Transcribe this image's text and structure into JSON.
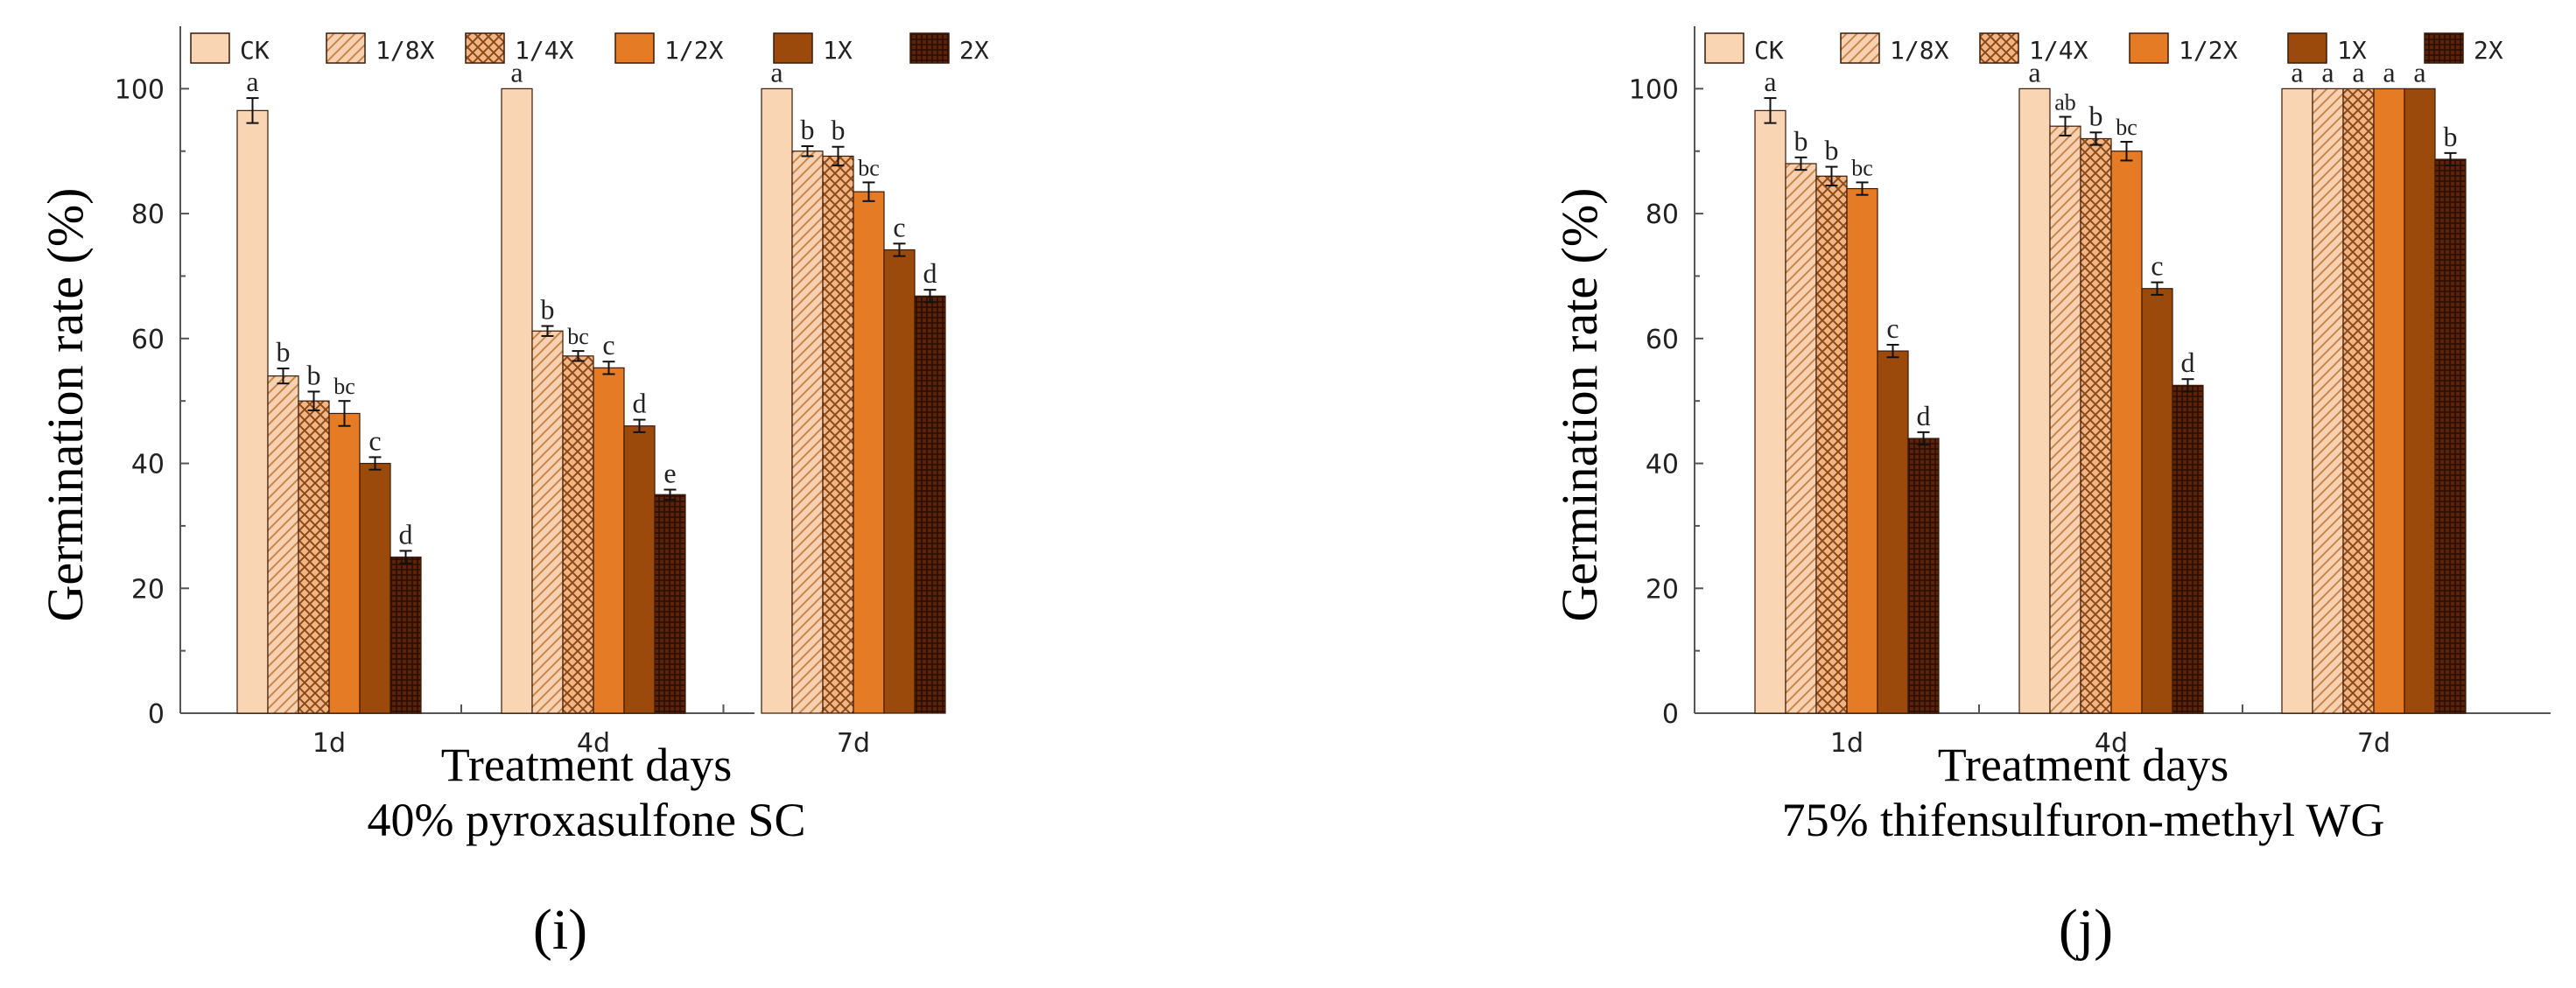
{
  "chart_data": [
    {
      "type": "bar",
      "panel_label": "(i)",
      "subtitle": "40% pyroxasulfone SC",
      "xlabel": "Treatment days",
      "ylabel": "Germination rate (%)",
      "ylim": [
        0,
        110
      ],
      "yticks": [
        0,
        20,
        40,
        60,
        80,
        100
      ],
      "categories": [
        "1d",
        "4d",
        "7d"
      ],
      "legend_position": "top",
      "series": [
        {
          "name": "CK",
          "values": [
            96.5,
            100,
            100
          ],
          "errors": [
            2.0,
            0.0,
            0.0
          ],
          "letters": [
            "a",
            "a",
            "a"
          ]
        },
        {
          "name": "1/8X",
          "values": [
            54,
            61.2,
            90
          ],
          "errors": [
            1.2,
            0.8,
            0.8
          ],
          "letters": [
            "b",
            "b",
            "b"
          ]
        },
        {
          "name": "1/4X",
          "values": [
            50,
            57.2,
            89.2
          ],
          "errors": [
            1.5,
            0.8,
            1.5
          ],
          "letters": [
            "b",
            "bc",
            "b"
          ]
        },
        {
          "name": "1/2X",
          "values": [
            48,
            55.3,
            83.5
          ],
          "errors": [
            2.0,
            1.0,
            1.5
          ],
          "letters": [
            "bc",
            "c",
            "bc"
          ]
        },
        {
          "name": "1X",
          "values": [
            40,
            46,
            74.2
          ],
          "errors": [
            1.0,
            1.0,
            1.0
          ],
          "letters": [
            "c",
            "d",
            "c"
          ]
        },
        {
          "name": "2X",
          "values": [
            25,
            35,
            66.8
          ],
          "errors": [
            1.0,
            0.8,
            1.0
          ],
          "letters": [
            "d",
            "e",
            "d"
          ]
        }
      ]
    },
    {
      "type": "bar",
      "panel_label": "(j)",
      "subtitle": "75% thifensulfuron-methyl WG",
      "xlabel": "Treatment days",
      "ylabel": "Germination rate (%)",
      "ylim": [
        0,
        110
      ],
      "yticks": [
        0,
        20,
        40,
        60,
        80,
        100
      ],
      "categories": [
        "1d",
        "4d",
        "7d"
      ],
      "legend_position": "top",
      "series": [
        {
          "name": "CK",
          "values": [
            96.5,
            100,
            100
          ],
          "errors": [
            2.0,
            0.0,
            0.0
          ],
          "letters": [
            "a",
            "a",
            "a"
          ]
        },
        {
          "name": "1/8X",
          "values": [
            88,
            94,
            100
          ],
          "errors": [
            1.0,
            1.5,
            0.0
          ],
          "letters": [
            "b",
            "ab",
            "a"
          ]
        },
        {
          "name": "1/4X",
          "values": [
            86,
            92,
            100
          ],
          "errors": [
            1.5,
            1.0,
            0.0
          ],
          "letters": [
            "b",
            "b",
            "a"
          ]
        },
        {
          "name": "1/2X",
          "values": [
            84,
            90,
            100
          ],
          "errors": [
            1.0,
            1.5,
            0.0
          ],
          "letters": [
            "bc",
            "bc",
            "a"
          ]
        },
        {
          "name": "1X",
          "values": [
            58,
            68,
            100
          ],
          "errors": [
            1.0,
            1.0,
            0.0
          ],
          "letters": [
            "c",
            "c",
            "a"
          ]
        },
        {
          "name": "2X",
          "values": [
            44,
            52.5,
            88.7
          ],
          "errors": [
            1.0,
            1.0,
            1.0
          ],
          "letters": [
            "d",
            "d",
            "b"
          ]
        }
      ]
    }
  ],
  "colors": {
    "CK": "#f9d5b4",
    "1/8X": "#f6c79f",
    "1/4X": "#efab78",
    "1/2X": "#e57b25",
    "1X": "#9c4a0b",
    "2X": "#4a1c06",
    "axis": "#555555"
  }
}
